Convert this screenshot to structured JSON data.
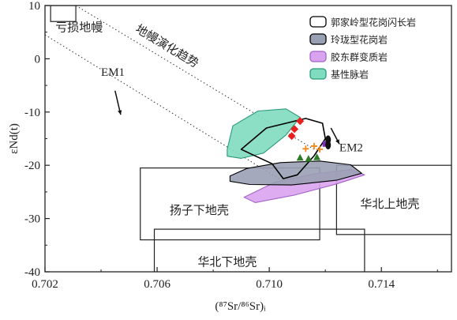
{
  "chart_data": {
    "type": "scatter",
    "title": "",
    "xlabel": "(⁸⁷Sr/⁸⁶Sr)ᵢ",
    "ylabel": "εNd(t)",
    "xlim": [
      0.702,
      0.7165
    ],
    "ylim": [
      -40,
      10
    ],
    "x_ticks": [
      0.702,
      0.706,
      0.71,
      0.714
    ],
    "x_tick_labels": [
      "0.702",
      "0.706",
      "0.710",
      "0.714"
    ],
    "y_ticks": [
      10,
      0,
      -10,
      -20,
      -30,
      -40
    ],
    "y_tick_labels": [
      "10",
      "0",
      "-10",
      "-20",
      "-30",
      "-40"
    ],
    "grid": false,
    "legend_position": "top-right",
    "legend": [
      {
        "label": "郭家岭型花岗闪长岩",
        "fill": "#ffffff",
        "stroke": "#000000"
      },
      {
        "label": "玲珑型花岗岩",
        "fill": "#9aa0b4",
        "stroke": "#000000"
      },
      {
        "label": "胶东群变质岩",
        "fill": "#d9a3ef",
        "stroke": "#a565c8"
      },
      {
        "label": "基性脉岩",
        "fill": "#7fdcbf",
        "stroke": "#2a9a78"
      }
    ],
    "boxes": [
      {
        "label": "亏损地幔",
        "x": [
          0.7022,
          0.7031
        ],
        "y": [
          7,
          10
        ]
      },
      {
        "label": "扬子下地壳",
        "x": [
          0.7054,
          0.7118
        ],
        "y": [
          -34,
          -20.5
        ]
      },
      {
        "label": "华北下地壳",
        "x": [
          0.7059,
          0.7134
        ],
        "y": [
          -42,
          -32
        ]
      },
      {
        "label": "华北上地壳",
        "x": [
          0.7124,
          0.7165
        ],
        "y": [
          -33,
          -20
        ]
      }
    ],
    "mantle_trend": {
      "label": "地幔演化趋势",
      "upper_line": [
        [
          0.7031,
          10
        ],
        [
          0.7116,
          -17
        ]
      ],
      "lower_line": [
        [
          0.702,
          4.5
        ],
        [
          0.7108,
          -24
        ]
      ]
    },
    "end_members": [
      {
        "label": "EM1",
        "arrow_from": [
          0.7045,
          -6
        ],
        "arrow_to": [
          0.7047,
          -10.5
        ]
      },
      {
        "label": "EM2",
        "arrow_from": [
          0.7122,
          -13
        ],
        "arrow_to": [
          0.7125,
          -16
        ]
      }
    ],
    "fields": [
      {
        "name": "胶东群变质岩",
        "polygon": [
          [
            0.7091,
            -26
          ],
          [
            0.7102,
            -23.2
          ],
          [
            0.7116,
            -21.6
          ],
          [
            0.7129,
            -20.8
          ],
          [
            0.7134,
            -21.8
          ],
          [
            0.7124,
            -23.5
          ],
          [
            0.7109,
            -25.6
          ],
          [
            0.7095,
            -27
          ]
        ]
      },
      {
        "name": "玲珑型花岗岩",
        "polygon": [
          [
            0.7086,
            -22
          ],
          [
            0.7092,
            -20.6
          ],
          [
            0.7104,
            -19.5
          ],
          [
            0.7118,
            -19.2
          ],
          [
            0.7129,
            -19.9
          ],
          [
            0.7133,
            -21.5
          ],
          [
            0.7124,
            -22.8
          ],
          [
            0.7108,
            -23.7
          ],
          [
            0.7093,
            -23.6
          ],
          [
            0.7086,
            -23
          ]
        ]
      },
      {
        "name": "基性脉岩",
        "polygon": [
          [
            0.7085,
            -17
          ],
          [
            0.7087,
            -12.6
          ],
          [
            0.7096,
            -9.8
          ],
          [
            0.7106,
            -9.4
          ],
          [
            0.7111,
            -11
          ],
          [
            0.7106,
            -14.3
          ],
          [
            0.7098,
            -17.7
          ],
          [
            0.709,
            -18.7
          ],
          [
            0.7085,
            -18.3
          ]
        ]
      },
      {
        "name": "郭家岭型花岗闪长岩",
        "polygon": [
          [
            0.709,
            -17
          ],
          [
            0.7099,
            -13
          ],
          [
            0.7113,
            -11.2
          ],
          [
            0.7119,
            -12.1
          ],
          [
            0.712,
            -15
          ],
          [
            0.7116,
            -18.2
          ],
          [
            0.711,
            -21.8
          ],
          [
            0.7105,
            -22.5
          ],
          [
            0.7101,
            -19.7
          ],
          [
            0.7094,
            -18
          ]
        ]
      }
    ],
    "points": [
      {
        "series": "郭家岭型花岗闪长岩",
        "marker": "diamond",
        "color": "#e8201e",
        "x": 0.7111,
        "y": -11.7
      },
      {
        "series": "郭家岭型花岗闪长岩",
        "marker": "diamond",
        "color": "#e8201e",
        "x": 0.7109,
        "y": -13.2
      },
      {
        "series": "郭家岭型花岗闪长岩",
        "marker": "diamond",
        "color": "#e8201e",
        "x": 0.7108,
        "y": -14.5
      },
      {
        "series": "玲珑型花岗岩",
        "marker": "plus",
        "color": "#f08a1a",
        "x": 0.7113,
        "y": -16.9
      },
      {
        "series": "玲珑型花岗岩",
        "marker": "plus",
        "color": "#f08a1a",
        "x": 0.7116,
        "y": -16.4
      },
      {
        "series": "玲珑型花岗岩",
        "marker": "plus",
        "color": "#f08a1a",
        "x": 0.7118,
        "y": -17.0
      },
      {
        "series": "基性脉岩",
        "marker": "triangle",
        "color": "#2f7d2a",
        "x": 0.7111,
        "y": -18.6
      },
      {
        "series": "基性脉岩",
        "marker": "triangle",
        "color": "#2f7d2a",
        "x": 0.7114,
        "y": -18.8
      },
      {
        "series": "基性脉岩",
        "marker": "triangle",
        "color": "#2f7d2a",
        "x": 0.7117,
        "y": -18.5
      },
      {
        "series": "胶东群变质岩",
        "marker": "square",
        "color": "#7a2fb3",
        "x": 0.712,
        "y": -16.0
      },
      {
        "series": "玲珑型花岗岩",
        "marker": "ellipse",
        "color": "#111111",
        "x": 0.7121,
        "y": -15.2
      },
      {
        "series": "玲珑型花岗岩",
        "marker": "ellipse",
        "color": "#111111",
        "x": 0.7121,
        "y": -16.2
      }
    ]
  }
}
